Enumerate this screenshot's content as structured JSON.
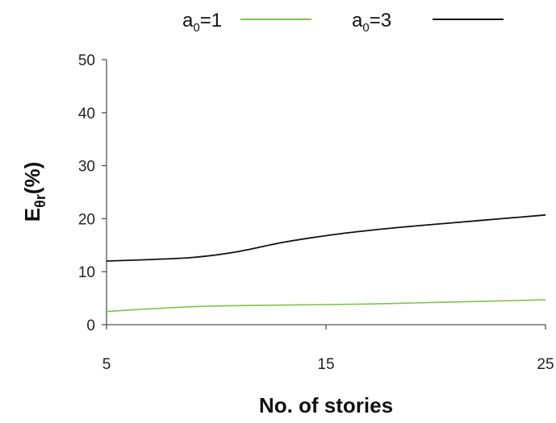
{
  "chart_data": {
    "type": "line",
    "xlabel": "No. of stories",
    "ylabel": {
      "main": "E",
      "sub": "θr",
      "suffix": "(%)"
    },
    "xlim": [
      5,
      25
    ],
    "ylim": [
      0,
      50
    ],
    "xticks": [
      5,
      15,
      25
    ],
    "yticks": [
      0,
      10,
      20,
      30,
      40,
      50
    ],
    "grid": false,
    "legend_position": "top",
    "series": [
      {
        "name": "a0=1",
        "label_main": "a",
        "label_sub": "0",
        "label_suffix": "=1",
        "color": "#7dc44a",
        "x": [
          5,
          7,
          9,
          11,
          13,
          15,
          17,
          19,
          21,
          23,
          25
        ],
        "y": [
          2.5,
          3.0,
          3.4,
          3.6,
          3.7,
          3.8,
          3.9,
          4.1,
          4.3,
          4.5,
          4.7
        ]
      },
      {
        "name": "a0=3",
        "label_main": "a",
        "label_sub": "0",
        "label_suffix": "=3",
        "color": "#111111",
        "x": [
          5,
          7,
          9,
          11,
          13,
          15,
          17,
          19,
          21,
          23,
          25
        ],
        "y": [
          12.0,
          12.3,
          12.7,
          13.8,
          15.5,
          16.8,
          17.8,
          18.6,
          19.3,
          20.0,
          20.7
        ]
      }
    ]
  }
}
